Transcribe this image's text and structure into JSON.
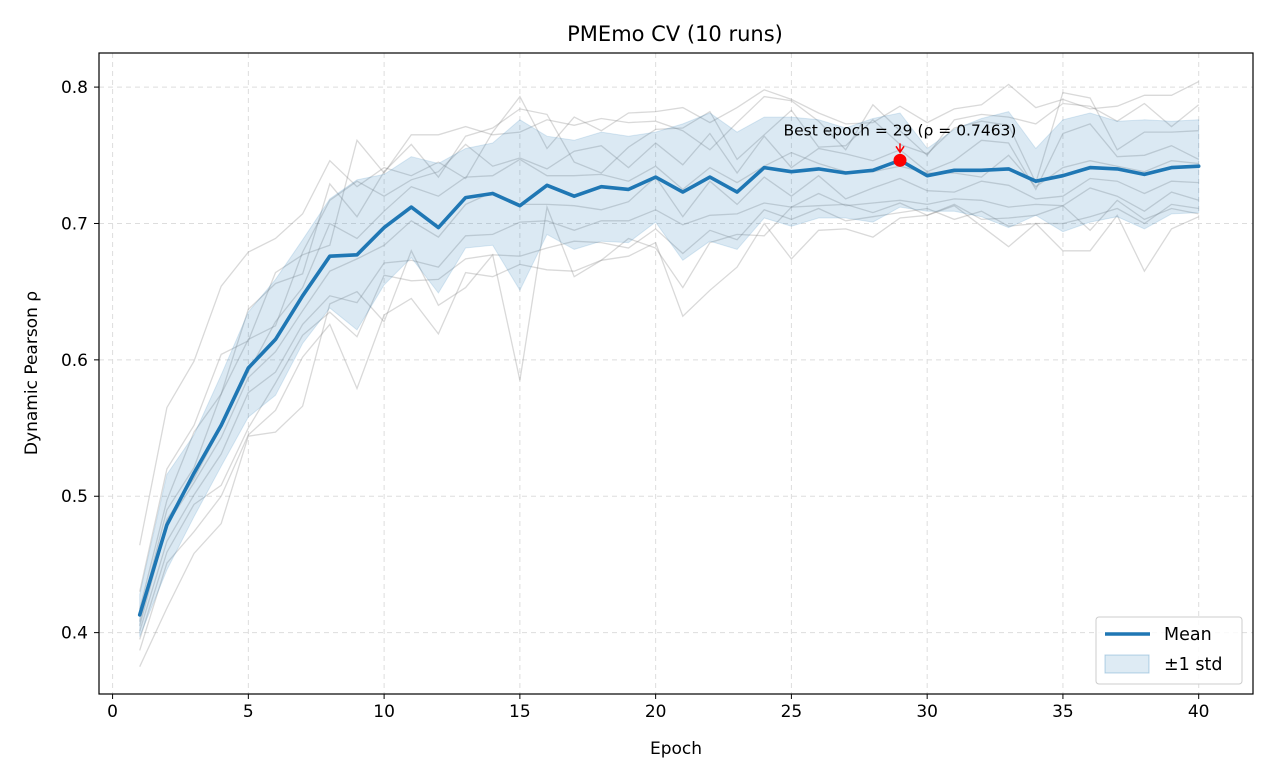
{
  "chart_data": {
    "type": "line",
    "title": "PMEmo CV (10 runs)",
    "xlabel": "Epoch",
    "ylabel": "Dynamic Pearson ρ",
    "xlim": [
      -0.5,
      42
    ],
    "ylim": [
      0.355,
      0.825
    ],
    "xticks": [
      0,
      5,
      10,
      15,
      20,
      25,
      30,
      35,
      40
    ],
    "yticks": [
      0.4,
      0.5,
      0.6,
      0.7,
      0.8
    ],
    "grid": true,
    "legend_position": "lower-right",
    "x": [
      1,
      2,
      3,
      4,
      5,
      6,
      7,
      8,
      9,
      10,
      11,
      12,
      13,
      14,
      15,
      16,
      17,
      18,
      19,
      20,
      21,
      22,
      23,
      24,
      25,
      26,
      27,
      28,
      29,
      30,
      31,
      32,
      33,
      34,
      35,
      36,
      37,
      38,
      39,
      40
    ],
    "series": [
      {
        "name": "Mean",
        "color": "#1f77b4",
        "values": [
          0.413,
          0.479,
          0.517,
          0.552,
          0.594,
          0.615,
          0.647,
          0.676,
          0.677,
          0.697,
          0.712,
          0.697,
          0.719,
          0.722,
          0.713,
          0.728,
          0.72,
          0.727,
          0.725,
          0.734,
          0.723,
          0.734,
          0.723,
          0.741,
          0.738,
          0.74,
          0.737,
          0.739,
          0.7463,
          0.735,
          0.739,
          0.739,
          0.74,
          0.731,
          0.735,
          0.741,
          0.74,
          0.736,
          0.741,
          0.742
        ]
      }
    ],
    "band": {
      "name": "±1 std",
      "color": "#1f77b4",
      "upper": [
        0.428,
        0.516,
        0.545,
        0.589,
        0.635,
        0.659,
        0.688,
        0.718,
        0.732,
        0.736,
        0.749,
        0.744,
        0.755,
        0.759,
        0.776,
        0.764,
        0.761,
        0.767,
        0.764,
        0.767,
        0.773,
        0.781,
        0.767,
        0.778,
        0.778,
        0.776,
        0.77,
        0.777,
        0.781,
        0.755,
        0.769,
        0.777,
        0.782,
        0.755,
        0.776,
        0.781,
        0.775,
        0.776,
        0.775,
        0.776
      ],
      "lower": [
        0.397,
        0.446,
        0.485,
        0.522,
        0.558,
        0.574,
        0.612,
        0.638,
        0.622,
        0.655,
        0.675,
        0.649,
        0.682,
        0.684,
        0.651,
        0.692,
        0.681,
        0.687,
        0.686,
        0.701,
        0.673,
        0.687,
        0.681,
        0.704,
        0.698,
        0.704,
        0.704,
        0.701,
        0.712,
        0.709,
        0.709,
        0.705,
        0.697,
        0.706,
        0.694,
        0.701,
        0.705,
        0.696,
        0.707,
        0.708
      ]
    },
    "individual_runs": [
      [
        0.464,
        0.565,
        0.599,
        0.654,
        0.679,
        0.689,
        0.707,
        0.746,
        0.727,
        0.741,
        0.735,
        0.745,
        0.733,
        0.767,
        0.793,
        0.755,
        0.778,
        0.768,
        0.781,
        0.782,
        0.785,
        0.774,
        0.785,
        0.798,
        0.791,
        0.781,
        0.773,
        0.774,
        0.786,
        0.774,
        0.784,
        0.787,
        0.802,
        0.785,
        0.791,
        0.784,
        0.786,
        0.794,
        0.794,
        0.804
      ],
      [
        0.43,
        0.52,
        0.552,
        0.604,
        0.614,
        0.664,
        0.677,
        0.684,
        0.761,
        0.737,
        0.765,
        0.765,
        0.771,
        0.765,
        0.767,
        0.776,
        0.772,
        0.777,
        0.774,
        0.775,
        0.768,
        0.754,
        0.774,
        0.793,
        0.79,
        0.775,
        0.754,
        0.787,
        0.768,
        0.75,
        0.776,
        0.78,
        0.778,
        0.773,
        0.788,
        0.786,
        0.775,
        0.788,
        0.771,
        0.787
      ],
      [
        0.417,
        0.497,
        0.547,
        0.575,
        0.637,
        0.656,
        0.663,
        0.729,
        0.705,
        0.738,
        0.758,
        0.734,
        0.764,
        0.77,
        0.784,
        0.78,
        0.745,
        0.737,
        0.756,
        0.769,
        0.77,
        0.782,
        0.747,
        0.765,
        0.783,
        0.756,
        0.757,
        0.776,
        0.758,
        0.751,
        0.77,
        0.775,
        0.772,
        0.73,
        0.796,
        0.792,
        0.754,
        0.767,
        0.767,
        0.768
      ],
      [
        0.412,
        0.49,
        0.521,
        0.575,
        0.615,
        0.625,
        0.679,
        0.717,
        0.731,
        0.72,
        0.732,
        0.738,
        0.758,
        0.742,
        0.748,
        0.74,
        0.753,
        0.757,
        0.741,
        0.759,
        0.743,
        0.766,
        0.737,
        0.764,
        0.741,
        0.755,
        0.751,
        0.746,
        0.754,
        0.738,
        0.746,
        0.761,
        0.759,
        0.725,
        0.766,
        0.773,
        0.749,
        0.75,
        0.757,
        0.747
      ],
      [
        0.408,
        0.483,
        0.513,
        0.551,
        0.591,
        0.628,
        0.653,
        0.7,
        0.689,
        0.709,
        0.727,
        0.72,
        0.734,
        0.735,
        0.747,
        0.735,
        0.735,
        0.736,
        0.731,
        0.742,
        0.725,
        0.741,
        0.73,
        0.742,
        0.752,
        0.744,
        0.738,
        0.738,
        0.742,
        0.737,
        0.737,
        0.734,
        0.75,
        0.727,
        0.741,
        0.746,
        0.742,
        0.738,
        0.746,
        0.744
      ],
      [
        0.405,
        0.479,
        0.51,
        0.543,
        0.587,
        0.606,
        0.636,
        0.665,
        0.674,
        0.684,
        0.702,
        0.69,
        0.714,
        0.723,
        0.714,
        0.714,
        0.713,
        0.71,
        0.716,
        0.734,
        0.705,
        0.731,
        0.714,
        0.734,
        0.72,
        0.735,
        0.718,
        0.726,
        0.733,
        0.724,
        0.723,
        0.731,
        0.728,
        0.718,
        0.72,
        0.733,
        0.731,
        0.722,
        0.731,
        0.73
      ],
      [
        0.401,
        0.467,
        0.501,
        0.531,
        0.576,
        0.591,
        0.626,
        0.647,
        0.642,
        0.671,
        0.673,
        0.668,
        0.691,
        0.692,
        0.701,
        0.702,
        0.695,
        0.702,
        0.702,
        0.71,
        0.699,
        0.706,
        0.707,
        0.715,
        0.712,
        0.722,
        0.713,
        0.715,
        0.717,
        0.714,
        0.718,
        0.717,
        0.712,
        0.714,
        0.713,
        0.726,
        0.72,
        0.709,
        0.723,
        0.717
      ],
      [
        0.395,
        0.459,
        0.494,
        0.508,
        0.55,
        0.583,
        0.618,
        0.635,
        0.617,
        0.662,
        0.658,
        0.659,
        0.674,
        0.677,
        0.676,
        0.682,
        0.687,
        0.686,
        0.682,
        0.696,
        0.678,
        0.695,
        0.688,
        0.71,
        0.703,
        0.711,
        0.702,
        0.705,
        0.708,
        0.711,
        0.703,
        0.709,
        0.698,
        0.7,
        0.7,
        0.705,
        0.711,
        0.7,
        0.714,
        0.711
      ],
      [
        0.387,
        0.451,
        0.474,
        0.5,
        0.545,
        0.563,
        0.602,
        0.626,
        0.579,
        0.633,
        0.645,
        0.619,
        0.664,
        0.661,
        0.67,
        0.666,
        0.665,
        0.673,
        0.676,
        0.686,
        0.632,
        0.651,
        0.668,
        0.7,
        0.674,
        0.695,
        0.696,
        0.69,
        0.704,
        0.706,
        0.713,
        0.698,
        0.683,
        0.7,
        0.68,
        0.68,
        0.706,
        0.665,
        0.696,
        0.705
      ],
      [
        0.375,
        0.418,
        0.458,
        0.48,
        0.544,
        0.547,
        0.566,
        0.641,
        0.65,
        0.628,
        0.68,
        0.64,
        0.653,
        0.677,
        0.585,
        0.712,
        0.661,
        0.673,
        0.689,
        0.682,
        0.653,
        0.686,
        0.692,
        0.691,
        0.712,
        0.713,
        0.714,
        0.708,
        0.715,
        0.706,
        0.714,
        0.703,
        0.704,
        0.706,
        0.713,
        0.695,
        0.717,
        0.703,
        0.711,
        0.707
      ]
    ],
    "best_point": {
      "x": 29,
      "y": 0.7463,
      "color": "#ff0000"
    },
    "annotation": "Best epoch = 29 (ρ = 0.7463)"
  }
}
